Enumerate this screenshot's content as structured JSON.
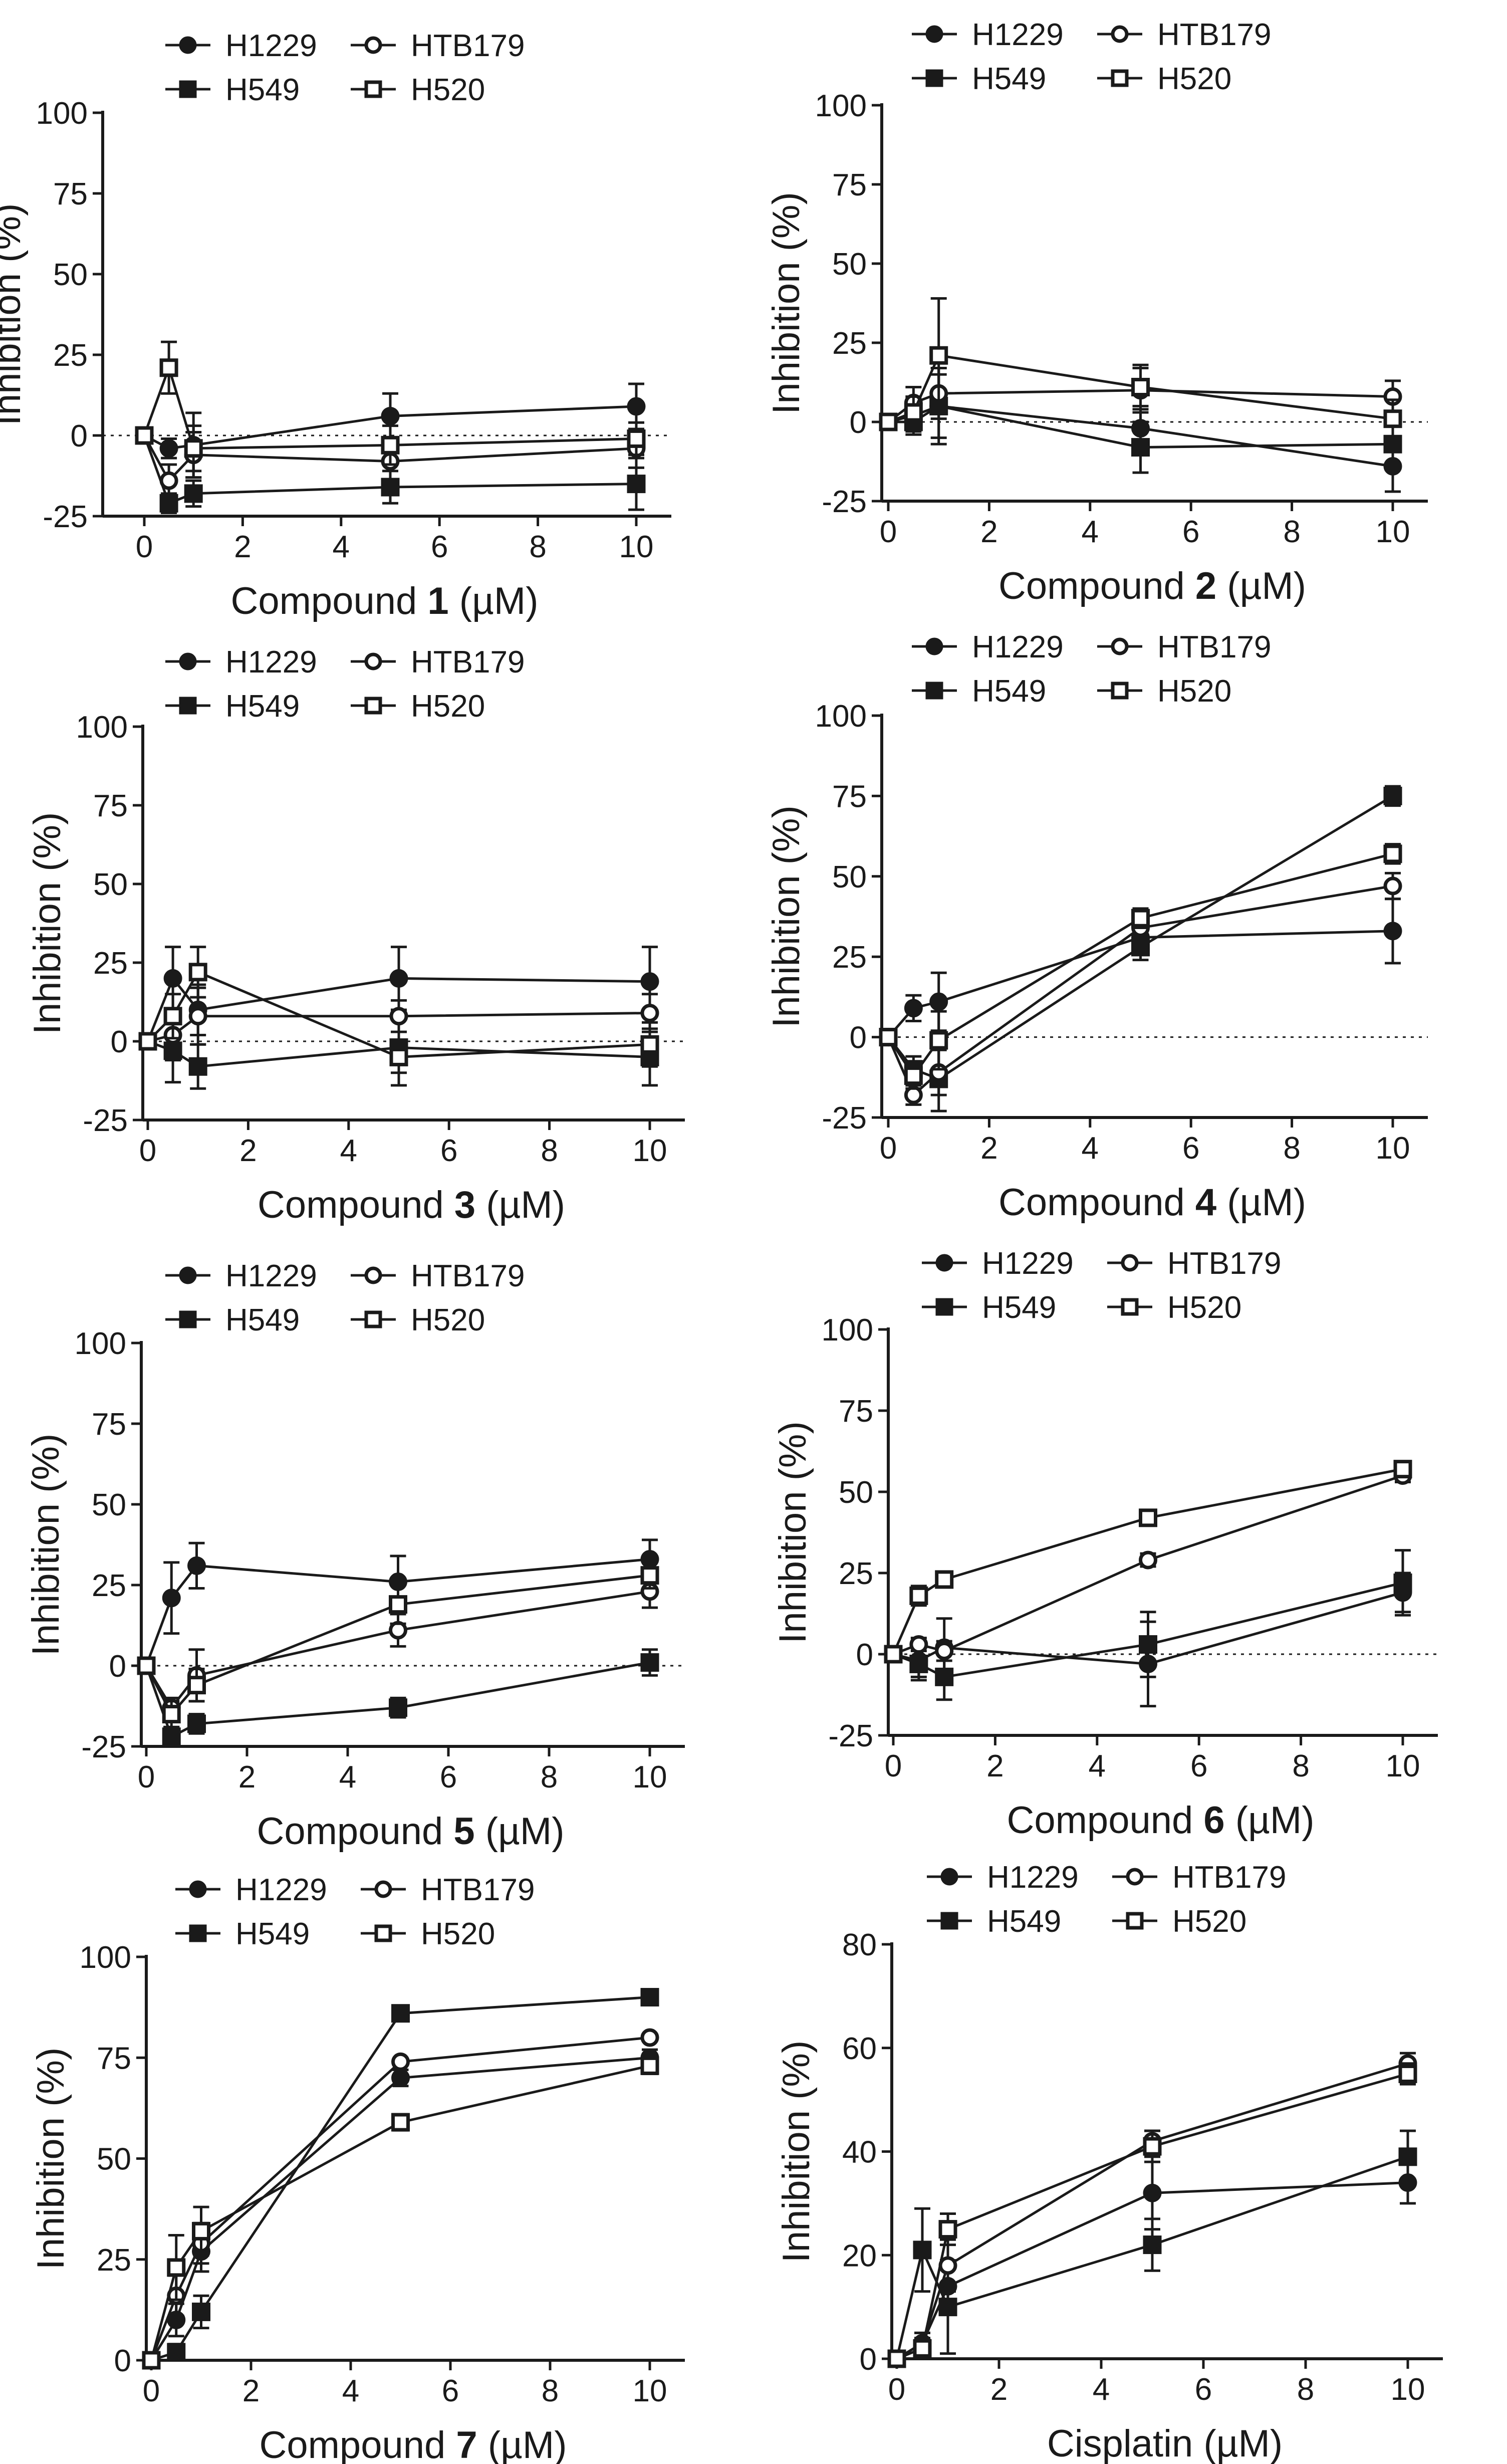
{
  "figure": {
    "colors": {
      "ink": "#1a1a1a",
      "background": "#ffffff",
      "baseline": "#1a1a1a"
    },
    "series_style": {
      "H1229": {
        "marker": "circle",
        "fill": "#1a1a1a"
      },
      "HTB179": {
        "marker": "circle",
        "fill": "#ffffff"
      },
      "H549": {
        "marker": "square",
        "fill": "#1a1a1a"
      },
      "H520": {
        "marker": "square",
        "fill": "#ffffff"
      }
    }
  },
  "chart_data": [
    {
      "type": "line",
      "xlabel_prefix": "Compound ",
      "xlabel_bold": "1",
      "xlabel_suffix": " (µM)",
      "ylabel": "Inhibition (%)",
      "legend_position": "top-left",
      "xlim": [
        0,
        11
      ],
      "xticks": [
        0,
        2,
        4,
        6,
        8,
        10
      ],
      "ylim": [
        -25,
        100
      ],
      "yticks": [
        -25,
        0,
        25,
        50,
        75,
        100
      ],
      "zero_line": true,
      "x": [
        0,
        0.5,
        1,
        5,
        10
      ],
      "series": [
        {
          "name": "H1229",
          "values": [
            0,
            -4,
            -3,
            6,
            9
          ],
          "errors": [
            1,
            3,
            10,
            7,
            7
          ]
        },
        {
          "name": "H549",
          "values": [
            0,
            -21,
            -18,
            -16,
            -15
          ],
          "errors": [
            1,
            3,
            4,
            5,
            8
          ]
        },
        {
          "name": "HTB179",
          "values": [
            0,
            -14,
            -6,
            -8,
            -4
          ],
          "errors": [
            1,
            5,
            7,
            6,
            6
          ]
        },
        {
          "name": "H520",
          "values": [
            0,
            21,
            -4,
            -3,
            -1
          ],
          "errors": [
            1,
            8,
            7,
            6,
            5
          ]
        }
      ]
    },
    {
      "type": "line",
      "xlabel_prefix": "Compound ",
      "xlabel_bold": "2",
      "xlabel_suffix": " (µM)",
      "ylabel": "Inhibition (%)",
      "legend_position": "top-right",
      "xlim": [
        0,
        11
      ],
      "xticks": [
        0,
        2,
        4,
        6,
        8,
        10
      ],
      "ylim": [
        -25,
        100
      ],
      "yticks": [
        -25,
        0,
        25,
        50,
        75,
        100
      ],
      "zero_line": true,
      "x": [
        0,
        0.5,
        1,
        5,
        10
      ],
      "series": [
        {
          "name": "H1229",
          "values": [
            0,
            2,
            5,
            -2,
            -14
          ],
          "errors": [
            1,
            5,
            10,
            7,
            8
          ]
        },
        {
          "name": "H549",
          "values": [
            0,
            0,
            5,
            -8,
            -7
          ],
          "errors": [
            1,
            4,
            12,
            8,
            6
          ]
        },
        {
          "name": "HTB179",
          "values": [
            0,
            6,
            9,
            10,
            8
          ],
          "errors": [
            1,
            5,
            8,
            7,
            5
          ]
        },
        {
          "name": "H520",
          "values": [
            0,
            3,
            21,
            11,
            1
          ],
          "errors": [
            1,
            5,
            18,
            7,
            6
          ]
        }
      ]
    },
    {
      "type": "line",
      "xlabel_prefix": "Compound ",
      "xlabel_bold": "3",
      "xlabel_suffix": " (µM)",
      "ylabel": "Inhibition (%)",
      "legend_position": "top-left",
      "xlim": [
        0,
        11
      ],
      "xticks": [
        0,
        2,
        4,
        6,
        8,
        10
      ],
      "ylim": [
        -25,
        100
      ],
      "yticks": [
        -25,
        0,
        25,
        50,
        75,
        100
      ],
      "zero_line": true,
      "x": [
        0,
        0.5,
        1,
        5,
        10
      ],
      "series": [
        {
          "name": "H1229",
          "values": [
            0,
            20,
            10,
            20,
            19
          ],
          "errors": [
            1,
            10,
            8,
            10,
            11
          ]
        },
        {
          "name": "H549",
          "values": [
            0,
            -3,
            -8,
            -2,
            -5
          ],
          "errors": [
            1,
            10,
            7,
            12,
            9
          ]
        },
        {
          "name": "HTB179",
          "values": [
            0,
            2,
            8,
            8,
            9
          ],
          "errors": [
            1,
            8,
            9,
            5,
            6
          ]
        },
        {
          "name": "H520",
          "values": [
            0,
            8,
            22,
            -5,
            -1
          ],
          "errors": [
            1,
            7,
            8,
            5,
            7
          ]
        }
      ]
    },
    {
      "type": "line",
      "xlabel_prefix": "Compound ",
      "xlabel_bold": "4",
      "xlabel_suffix": " (µM)",
      "ylabel": "Inhibition (%)",
      "legend_position": "top-right",
      "xlim": [
        0,
        11
      ],
      "xticks": [
        0,
        2,
        4,
        6,
        8,
        10
      ],
      "ylim": [
        -25,
        100
      ],
      "yticks": [
        -25,
        0,
        25,
        50,
        75,
        100
      ],
      "zero_line": true,
      "x": [
        0,
        0.5,
        1,
        5,
        10
      ],
      "series": [
        {
          "name": "H1229",
          "values": [
            0,
            9,
            11,
            31,
            33
          ],
          "errors": [
            1,
            4,
            9,
            4,
            10
          ]
        },
        {
          "name": "H549",
          "values": [
            0,
            -10,
            -13,
            28,
            75
          ],
          "errors": [
            1,
            4,
            10,
            4,
            3
          ]
        },
        {
          "name": "HTB179",
          "values": [
            0,
            -18,
            -11,
            34,
            47
          ],
          "errors": [
            1,
            3,
            7,
            3,
            4
          ]
        },
        {
          "name": "H520",
          "values": [
            0,
            -12,
            -1,
            37,
            57
          ],
          "errors": [
            1,
            4,
            9,
            3,
            3
          ]
        }
      ]
    },
    {
      "type": "line",
      "xlabel_prefix": "Compound ",
      "xlabel_bold": "5",
      "xlabel_suffix": " (µM)",
      "ylabel": "Inhibition (%)",
      "legend_position": "top-left",
      "xlim": [
        0,
        11
      ],
      "xticks": [
        0,
        2,
        4,
        6,
        8,
        10
      ],
      "ylim": [
        -25,
        100
      ],
      "yticks": [
        -25,
        0,
        25,
        50,
        75,
        100
      ],
      "zero_line": true,
      "x": [
        0,
        0.5,
        1,
        5,
        10
      ],
      "series": [
        {
          "name": "H1229",
          "values": [
            0,
            21,
            31,
            26,
            33
          ],
          "errors": [
            1,
            11,
            7,
            8,
            6
          ]
        },
        {
          "name": "H549",
          "values": [
            0,
            -22,
            -18,
            -13,
            1
          ],
          "errors": [
            1,
            3,
            3,
            3,
            4
          ]
        },
        {
          "name": "HTB179",
          "values": [
            0,
            -13,
            -3,
            11,
            23
          ],
          "errors": [
            1,
            3,
            8,
            5,
            5
          ]
        },
        {
          "name": "H520",
          "values": [
            0,
            -15,
            -6,
            19,
            28
          ],
          "errors": [
            1,
            4,
            5,
            6,
            4
          ]
        }
      ]
    },
    {
      "type": "line",
      "xlabel_prefix": "Compound ",
      "xlabel_bold": "6",
      "xlabel_suffix": " (µM)",
      "ylabel": "Inhibition (%)",
      "legend_position": "top-right",
      "xlim": [
        0,
        11
      ],
      "xticks": [
        0,
        2,
        4,
        6,
        8,
        10
      ],
      "ylim": [
        -25,
        100
      ],
      "yticks": [
        -25,
        0,
        25,
        50,
        75,
        100
      ],
      "zero_line": true,
      "x": [
        0,
        0.5,
        1,
        5,
        10
      ],
      "series": [
        {
          "name": "H1229",
          "values": [
            0,
            -2,
            2,
            -3,
            19
          ],
          "errors": [
            1,
            5,
            9,
            13,
            6
          ]
        },
        {
          "name": "H549",
          "values": [
            0,
            -3,
            -7,
            3,
            22
          ],
          "errors": [
            1,
            5,
            7,
            10,
            10
          ]
        },
        {
          "name": "HTB179",
          "values": [
            0,
            3,
            1,
            29,
            55
          ],
          "errors": [
            1,
            2,
            3,
            2,
            2
          ]
        },
        {
          "name": "H520",
          "values": [
            0,
            18,
            23,
            42,
            57
          ],
          "errors": [
            1,
            3,
            2,
            2,
            2
          ]
        }
      ]
    },
    {
      "type": "line",
      "xlabel_prefix": "Compound ",
      "xlabel_bold": "7",
      "xlabel_suffix": " (µM)",
      "ylabel": "Inhibition (%)",
      "legend_position": "top-left",
      "xlim": [
        0,
        11
      ],
      "xticks": [
        0,
        2,
        4,
        6,
        8,
        10
      ],
      "ylim": [
        0,
        100
      ],
      "yticks": [
        0,
        25,
        50,
        75,
        100
      ],
      "zero_line": false,
      "x": [
        0,
        0.5,
        1,
        5,
        10
      ],
      "series": [
        {
          "name": "H1229",
          "values": [
            0,
            10,
            27,
            70,
            75
          ],
          "errors": [
            1,
            4,
            5,
            2,
            2
          ]
        },
        {
          "name": "H549",
          "values": [
            0,
            2,
            12,
            86,
            90
          ],
          "errors": [
            1,
            2,
            4,
            1,
            1
          ]
        },
        {
          "name": "HTB179",
          "values": [
            0,
            16,
            29,
            74,
            80
          ],
          "errors": [
            1,
            5,
            5,
            1,
            1
          ]
        },
        {
          "name": "H520",
          "values": [
            0,
            23,
            32,
            59,
            73
          ],
          "errors": [
            1,
            8,
            6,
            2,
            2
          ]
        }
      ]
    },
    {
      "type": "line",
      "xlabel_prefix": "Cisplatin",
      "xlabel_bold": "",
      "xlabel_suffix": " (µM)",
      "ylabel": "Inhibition (%)",
      "legend_position": "top-right",
      "xlim": [
        0,
        11
      ],
      "xticks": [
        0,
        2,
        4,
        6,
        8,
        10
      ],
      "ylim": [
        0,
        80
      ],
      "yticks": [
        0,
        20,
        40,
        60,
        80
      ],
      "zero_line": false,
      "x": [
        0,
        0.5,
        1,
        5,
        10
      ],
      "series": [
        {
          "name": "H1229",
          "values": [
            0,
            3,
            14,
            32,
            34
          ],
          "errors": [
            1,
            2,
            4,
            7,
            4
          ]
        },
        {
          "name": "H549",
          "values": [
            0,
            21,
            10,
            22,
            39
          ],
          "errors": [
            1,
            8,
            9,
            5,
            5
          ]
        },
        {
          "name": "HTB179",
          "values": [
            0,
            3,
            18,
            42,
            57
          ],
          "errors": [
            1,
            2,
            5,
            2,
            2
          ]
        },
        {
          "name": "H520",
          "values": [
            0,
            2,
            25,
            41,
            55
          ],
          "errors": [
            1,
            2,
            3,
            3,
            2
          ]
        }
      ]
    }
  ]
}
